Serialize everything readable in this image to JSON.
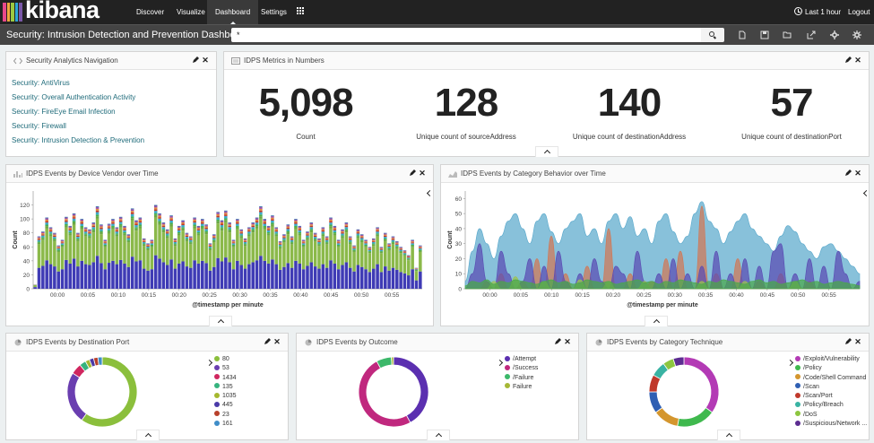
{
  "nav": {
    "brand": "kibana",
    "brand_colors": [
      "#e8488b",
      "#f1a83d",
      "#9cc941",
      "#2ea7d8",
      "#7a57a8",
      "#f05d4e",
      "#3cbea0"
    ],
    "links": [
      {
        "label": "Discover",
        "active": false
      },
      {
        "label": "Visualize",
        "active": false
      },
      {
        "label": "Dashboard",
        "active": true
      },
      {
        "label": "Settings",
        "active": false
      }
    ],
    "apps_icon": "grid-icon",
    "time_range": "Last 1 hour",
    "logout": "Logout"
  },
  "subbar": {
    "title": "Security: Intrusion Detection and Prevention Dashboard",
    "query": "*",
    "tools": [
      "new-dashboard-icon",
      "save-icon",
      "open-icon",
      "share-icon",
      "options-icon",
      "settings-icon"
    ]
  },
  "panels": {
    "nav": {
      "title": "Security Analytics Navigation",
      "links": [
        "Security: AntiVirus",
        "Security: Overall Authentication Activity",
        "Security: FireEye Email Infection",
        "Security: Firewall",
        "Security: Intrusion Detection & Prevention"
      ]
    },
    "metrics": {
      "title": "IDPS Metrics in Numbers",
      "items": [
        {
          "value": "5,098",
          "label": "Count"
        },
        {
          "value": "128",
          "label": "Unique count of sourceAddress"
        },
        {
          "value": "140",
          "label": "Unique count of destinationAddress"
        },
        {
          "value": "57",
          "label": "Unique count of destinationPort"
        }
      ]
    },
    "vendor": {
      "title": "IDPS Events by Device Vendor over Time"
    },
    "behavior": {
      "title": "IDPS Events by Category Behavior over Time"
    },
    "port": {
      "title": "IDPS Events by Destination Port"
    },
    "outcome": {
      "title": "IDPS Events by Outcome"
    },
    "technique": {
      "title": "IDPS Events by Category Technique"
    }
  },
  "chart_data": [
    {
      "type": "bar",
      "stacked": true,
      "ylabel": "Count",
      "xlabel": "@timestamp per minute",
      "ylim": [
        0,
        140
      ],
      "yticks": [
        0,
        20,
        40,
        60,
        80,
        100,
        120
      ],
      "xticks": [
        "00:00",
        "00:05",
        "00:10",
        "00:15",
        "00:20",
        "00:25",
        "00:30",
        "00:35",
        "00:40",
        "00:45",
        "00:50",
        "00:55"
      ],
      "x_start": -4,
      "colors": [
        "#3f3bb5",
        "#8bb94a",
        "#6ca745",
        "#48b04c",
        "#3ba9c9",
        "#c0392b",
        "#e08b3e",
        "#9c4fa8",
        "#2f6ca6"
      ],
      "totals": [
        6,
        75,
        82,
        102,
        88,
        80,
        62,
        70,
        103,
        90,
        108,
        80,
        100,
        88,
        85,
        95,
        118,
        92,
        70,
        93,
        100,
        88,
        103,
        90,
        78,
        115,
        98,
        102,
        72,
        65,
        70,
        120,
        108,
        95,
        85,
        105,
        72,
        90,
        98,
        80,
        75,
        102,
        90,
        100,
        92,
        65,
        78,
        110,
        98,
        112,
        95,
        70,
        100,
        85,
        72,
        88,
        95,
        102,
        118,
        100,
        90,
        105,
        88,
        68,
        78,
        92,
        75,
        100,
        90,
        70,
        82,
        95,
        80,
        72,
        88,
        75,
        102,
        90,
        70,
        85,
        95,
        75,
        62,
        85,
        78,
        70,
        60,
        72,
        88,
        60,
        80,
        65,
        75,
        68,
        60,
        55,
        48,
        70,
        30,
        62
      ],
      "shares": [
        0.4,
        0.45,
        0.03,
        0.02,
        0.03,
        0.02,
        0.02,
        0.02,
        0.01
      ]
    },
    {
      "type": "area",
      "ylabel": "Count",
      "xlabel": "@timestamp per minute",
      "ylim": [
        0,
        65
      ],
      "yticks": [
        0,
        10,
        20,
        30,
        40,
        50,
        60
      ],
      "xticks": [
        "00:00",
        "00:05",
        "00:10",
        "00:15",
        "00:20",
        "00:25",
        "00:30",
        "00:35",
        "00:40",
        "00:45",
        "00:50",
        "00:55"
      ],
      "x_start": -4,
      "series": [
        {
          "color": "#5aa9cc",
          "values": [
            5,
            25,
            40,
            30,
            20,
            35,
            45,
            50,
            40,
            30,
            45,
            50,
            38,
            30,
            40,
            45,
            50,
            35,
            40,
            30,
            45,
            50,
            40,
            48,
            35,
            40,
            30,
            45,
            50,
            38,
            30,
            35,
            50,
            58,
            45,
            40,
            30,
            38,
            45,
            50,
            40,
            35,
            30,
            25,
            35,
            42,
            38,
            30,
            25,
            20,
            28,
            30,
            25,
            20,
            15,
            10
          ]
        },
        {
          "color": "#d17755",
          "values": [
            0,
            0,
            0,
            5,
            0,
            10,
            0,
            0,
            5,
            0,
            20,
            0,
            35,
            0,
            10,
            0,
            0,
            15,
            0,
            0,
            40,
            0,
            0,
            10,
            0,
            0,
            5,
            0,
            20,
            0,
            25,
            0,
            0,
            55,
            0,
            10,
            0,
            0,
            20,
            0,
            0,
            5,
            0,
            0,
            10,
            0,
            0,
            0,
            5,
            0,
            0,
            0,
            0,
            0,
            0,
            0
          ]
        },
        {
          "color": "#5a4bb3",
          "values": [
            0,
            10,
            30,
            5,
            0,
            25,
            10,
            0,
            5,
            20,
            0,
            15,
            0,
            25,
            5,
            0,
            10,
            0,
            20,
            5,
            0,
            15,
            10,
            0,
            25,
            5,
            0,
            10,
            0,
            20,
            0,
            10,
            0,
            15,
            0,
            25,
            0,
            10,
            0,
            20,
            0,
            15,
            0,
            25,
            30,
            0,
            10,
            0,
            20,
            0,
            15,
            0,
            25,
            10,
            0,
            5
          ]
        },
        {
          "color": "#9ec24c",
          "values": [
            0,
            0,
            0,
            0,
            5,
            0,
            0,
            8,
            0,
            0,
            0,
            5,
            0,
            0,
            0,
            0,
            6,
            0,
            0,
            0,
            5,
            0,
            0,
            0,
            0,
            5,
            0,
            0,
            0,
            0,
            0,
            0,
            0,
            5,
            0,
            0,
            0,
            0,
            0,
            5,
            0,
            0,
            0,
            0,
            0,
            0,
            5,
            0,
            0,
            0,
            0,
            0,
            0,
            0,
            0,
            0
          ]
        },
        {
          "color": "#4aa84a",
          "values": [
            2,
            5,
            4,
            6,
            3,
            5,
            4,
            6,
            5,
            4,
            3,
            5,
            6,
            4,
            5,
            3,
            4,
            6,
            5,
            4,
            5,
            3,
            4,
            5,
            6,
            4,
            5,
            3,
            5,
            4,
            6,
            5,
            4,
            3,
            5,
            4,
            6,
            5,
            4,
            3,
            5,
            6,
            4,
            5,
            3,
            4,
            5,
            6,
            4,
            5,
            3,
            4,
            5,
            4,
            3,
            2
          ]
        }
      ]
    },
    {
      "type": "pie",
      "donut": true,
      "legend": [
        {
          "label": "80",
          "color": "#8bbf3c"
        },
        {
          "label": "53",
          "color": "#6a3eb0"
        },
        {
          "label": "1434",
          "color": "#d0265f"
        },
        {
          "label": "135",
          "color": "#36b37e"
        },
        {
          "label": "1035",
          "color": "#a5b82f"
        },
        {
          "label": "445",
          "color": "#4a3aa8"
        },
        {
          "label": "23",
          "color": "#b8402b"
        },
        {
          "label": "161",
          "color": "#3f8dc8"
        }
      ],
      "values": [
        60,
        24,
        5,
        3,
        2,
        2,
        2,
        2
      ]
    },
    {
      "type": "pie",
      "donut": true,
      "legend": [
        {
          "label": "/Attempt",
          "color": "#5b2fb0"
        },
        {
          "label": "/Success",
          "color": "#c0287e"
        },
        {
          "label": "/Failure",
          "color": "#3cb86a"
        },
        {
          "label": "Failure",
          "color": "#a6b836"
        }
      ],
      "values": [
        42,
        50,
        7,
        1
      ]
    },
    {
      "type": "pie",
      "donut": true,
      "legend": [
        {
          "label": "/Exploit/Vulnerability",
          "color": "#b33ab5"
        },
        {
          "label": "/Policy",
          "color": "#3fb94e"
        },
        {
          "label": "/Code/Shell Command",
          "color": "#d4962e"
        },
        {
          "label": "/Scan",
          "color": "#2f5fb3"
        },
        {
          "label": "/Scan/Port",
          "color": "#c0392b"
        },
        {
          "label": "/Policy/Breach",
          "color": "#39b3a3"
        },
        {
          "label": "/DoS",
          "color": "#8dc63f"
        },
        {
          "label": "/Suspicious/Network ...",
          "color": "#5c2d91"
        }
      ],
      "values": [
        35,
        18,
        12,
        10,
        8,
        7,
        5,
        5
      ]
    }
  ]
}
